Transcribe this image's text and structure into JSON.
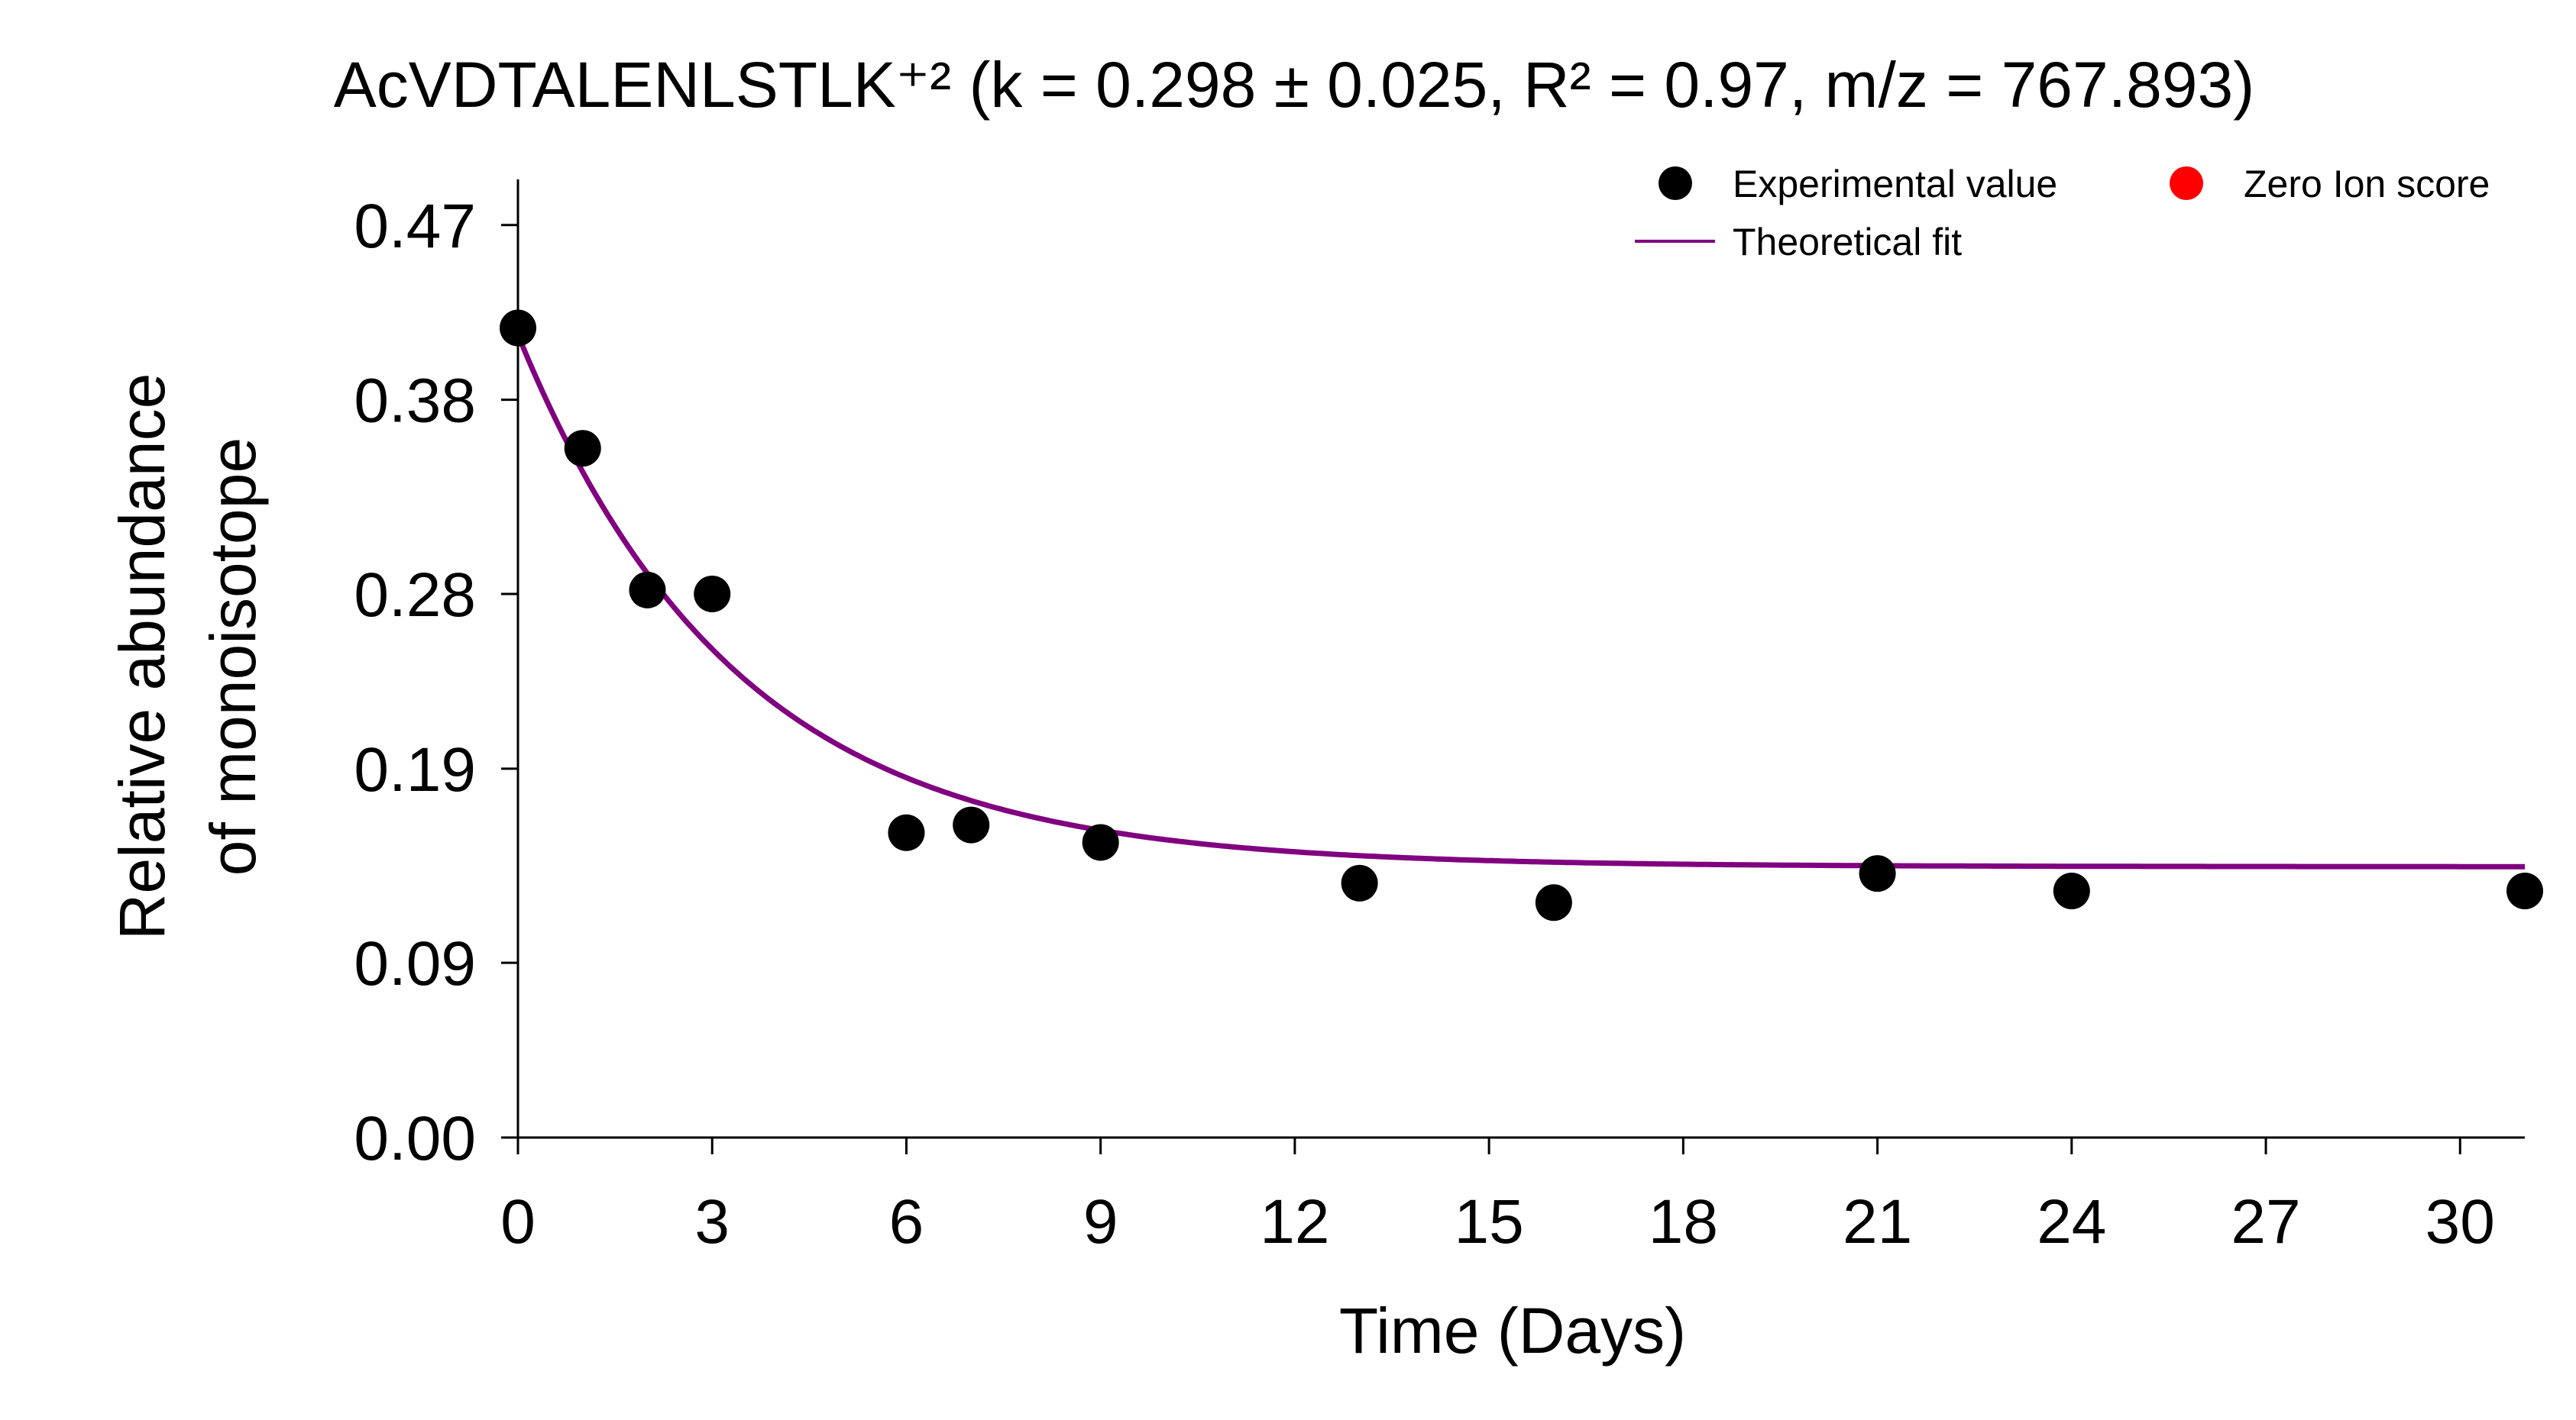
{
  "chart_data": {
    "type": "scatter",
    "title": "AcVDTALENLSTLK⁺² (k = 0.298 ± 0.025, R² = 0.97, m/z = 767.893)",
    "xlabel": "Time (Days)",
    "ylabel": [
      "Relative abundance",
      "of monoisotope"
    ],
    "xlim": [
      0,
      31
    ],
    "ylim": [
      0,
      0.4935
    ],
    "x_ticks": [
      0,
      3,
      6,
      9,
      12,
      15,
      18,
      21,
      24,
      27,
      30
    ],
    "y_ticks": [
      0.0,
      0.09,
      0.19,
      0.28,
      0.38,
      0.47
    ],
    "y_tick_labels": [
      "0.00",
      "0.09",
      "0.19",
      "0.28",
      "0.38",
      "0.47"
    ],
    "grid": false,
    "legend_position": "top-right",
    "series": [
      {
        "name": "Experimental value",
        "kind": "scatter",
        "color": "#000000",
        "x": [
          0,
          1,
          2,
          3,
          6,
          7,
          9,
          13,
          16,
          21,
          24,
          31
        ],
        "y": [
          0.417,
          0.355,
          0.282,
          0.28,
          0.157,
          0.161,
          0.152,
          0.131,
          0.121,
          0.136,
          0.127,
          0.127
        ]
      },
      {
        "name": "Zero Ion score",
        "kind": "scatter",
        "color": "#ff0000",
        "x": [],
        "y": []
      },
      {
        "name": "Theoretical fit",
        "kind": "line",
        "color": "#800080",
        "model": {
          "form": "exp_decay",
          "a0": 0.4135,
          "ainf": 0.1395,
          "k": 0.298
        }
      }
    ]
  }
}
